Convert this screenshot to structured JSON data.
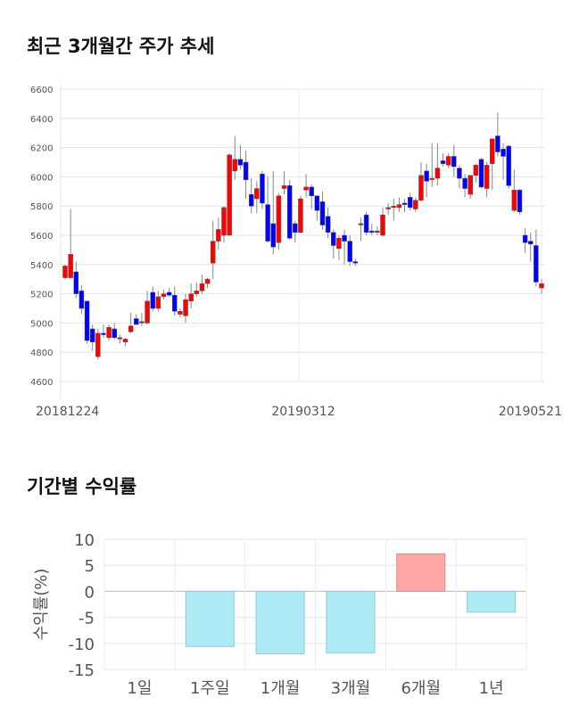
{
  "titles": {
    "price": "최근 3개월간 주가 추세",
    "returns": "기간별 수익률"
  },
  "colors": {
    "up": "#ff0000",
    "down": "#0000ff",
    "positive_bar": "#ffa6a6",
    "negative_bar": "#aeeaf4"
  },
  "chart_data": [
    {
      "type": "candlestick",
      "title": "최근 3개월간 주가 추세",
      "ylim": [
        4600,
        6600
      ],
      "yticks": [
        "4600",
        "4800",
        "5000",
        "5200",
        "5400",
        "5600",
        "5800",
        "6000",
        "6200",
        "6400",
        "6600"
      ],
      "xticks": [
        "20181224",
        "20190312",
        "20190521"
      ],
      "candles_ohlc": [
        [
          5310,
          5400,
          5300,
          5390
        ],
        [
          5310,
          5780,
          5300,
          5470
        ],
        [
          5350,
          5420,
          5170,
          5200
        ],
        [
          5220,
          5260,
          5060,
          5100
        ],
        [
          5150,
          5150,
          4860,
          4880
        ],
        [
          4960,
          4990,
          4810,
          4870
        ],
        [
          4770,
          4960,
          4750,
          4930
        ],
        [
          4930,
          4990,
          4900,
          4920
        ],
        [
          4900,
          4990,
          4880,
          4970
        ],
        [
          4960,
          5000,
          4890,
          4900
        ],
        [
          4900,
          4920,
          4860,
          4900
        ],
        [
          4870,
          4900,
          4840,
          4890
        ],
        [
          4940,
          5070,
          4930,
          4980
        ],
        [
          5030,
          5060,
          4990,
          4990
        ],
        [
          5000,
          5070,
          4980,
          5010
        ],
        [
          5000,
          5220,
          4990,
          5150
        ],
        [
          5210,
          5250,
          5080,
          5100
        ],
        [
          5100,
          5220,
          5080,
          5180
        ],
        [
          5180,
          5230,
          5160,
          5200
        ],
        [
          5210,
          5240,
          5180,
          5190
        ],
        [
          5190,
          5250,
          5050,
          5080
        ],
        [
          5060,
          5100,
          5040,
          5080
        ],
        [
          5050,
          5200,
          5000,
          5160
        ],
        [
          5150,
          5270,
          5100,
          5200
        ],
        [
          5200,
          5280,
          5180,
          5220
        ],
        [
          5220,
          5330,
          5200,
          5270
        ],
        [
          5270,
          5310,
          5240,
          5300
        ],
        [
          5410,
          5700,
          5300,
          5560
        ],
        [
          5560,
          5720,
          5500,
          5640
        ],
        [
          5600,
          5800,
          5550,
          5790
        ],
        [
          5600,
          6160,
          5600,
          6150
        ],
        [
          6040,
          6280,
          5980,
          6120
        ],
        [
          6120,
          6220,
          6050,
          6080
        ],
        [
          6100,
          6180,
          5850,
          5980
        ],
        [
          5880,
          5990,
          5750,
          5800
        ],
        [
          5850,
          5970,
          5750,
          5920
        ],
        [
          6020,
          6040,
          5780,
          5820
        ],
        [
          5810,
          6000,
          5550,
          5560
        ],
        [
          5680,
          6040,
          5470,
          5520
        ],
        [
          5550,
          5890,
          5500,
          5870
        ],
        [
          5920,
          6040,
          5880,
          5940
        ],
        [
          5940,
          5980,
          5570,
          5580
        ],
        [
          5680,
          5700,
          5550,
          5620
        ],
        [
          5620,
          5870,
          5620,
          5850
        ],
        [
          5910,
          6020,
          5860,
          5930
        ],
        [
          5930,
          5950,
          5780,
          5870
        ],
        [
          5870,
          5870,
          5700,
          5770
        ],
        [
          5830,
          5900,
          5640,
          5670
        ],
        [
          5730,
          5790,
          5580,
          5620
        ],
        [
          5620,
          5640,
          5440,
          5530
        ],
        [
          5510,
          5600,
          5430,
          5580
        ],
        [
          5600,
          5640,
          5400,
          5560
        ],
        [
          5560,
          5600,
          5390,
          5420
        ],
        [
          5420,
          5440,
          5390,
          5410
        ],
        [
          5680,
          5720,
          5560,
          5680
        ],
        [
          5740,
          5760,
          5600,
          5620
        ],
        [
          5630,
          5680,
          5600,
          5620
        ],
        [
          5620,
          5660,
          5600,
          5630
        ],
        [
          5600,
          5790,
          5590,
          5740
        ],
        [
          5780,
          5820,
          5740,
          5790
        ],
        [
          5800,
          5850,
          5700,
          5800
        ],
        [
          5790,
          5860,
          5760,
          5810
        ],
        [
          5820,
          5850,
          5760,
          5810
        ],
        [
          5860,
          5890,
          5770,
          5790
        ],
        [
          5780,
          5860,
          5760,
          5840
        ],
        [
          5840,
          6100,
          5830,
          6010
        ],
        [
          6040,
          6090,
          5860,
          5970
        ],
        [
          5990,
          6230,
          5930,
          5990
        ],
        [
          5990,
          6230,
          5940,
          6060
        ],
        [
          6110,
          6160,
          6070,
          6090
        ],
        [
          6080,
          6160,
          6060,
          6140
        ],
        [
          6140,
          6220,
          6000,
          6070
        ],
        [
          6060,
          6080,
          5920,
          5990
        ],
        [
          5990,
          6020,
          5860,
          5920
        ],
        [
          5880,
          5960,
          5850,
          6010
        ],
        [
          6010,
          6090,
          5960,
          6080
        ],
        [
          6120,
          6130,
          5920,
          5930
        ],
        [
          5920,
          6100,
          5860,
          6080
        ],
        [
          6090,
          6240,
          5910,
          6260
        ],
        [
          6280,
          6440,
          6140,
          6170
        ],
        [
          6190,
          6230,
          5980,
          6140
        ],
        [
          6210,
          6220,
          5920,
          5940
        ],
        [
          5770,
          6050,
          5760,
          5910
        ],
        [
          5910,
          5920,
          5740,
          5760
        ],
        [
          5600,
          5650,
          5480,
          5550
        ],
        [
          5560,
          5620,
          5420,
          5540
        ],
        [
          5530,
          5640,
          5250,
          5280
        ],
        [
          5240,
          5300,
          5200,
          5270
        ]
      ]
    },
    {
      "type": "bar",
      "title": "기간별 수익률",
      "ylabel": "수익률(%)",
      "ylim": [
        -15,
        10
      ],
      "yticks": [
        "10",
        "5",
        "0",
        "-5",
        "-10",
        "-15"
      ],
      "categories": [
        "1일",
        "1주일",
        "1개월",
        "3개월",
        "6개월",
        "1년"
      ],
      "values": [
        0,
        -10.6,
        -12.0,
        -11.8,
        7.2,
        -4.0
      ]
    }
  ]
}
